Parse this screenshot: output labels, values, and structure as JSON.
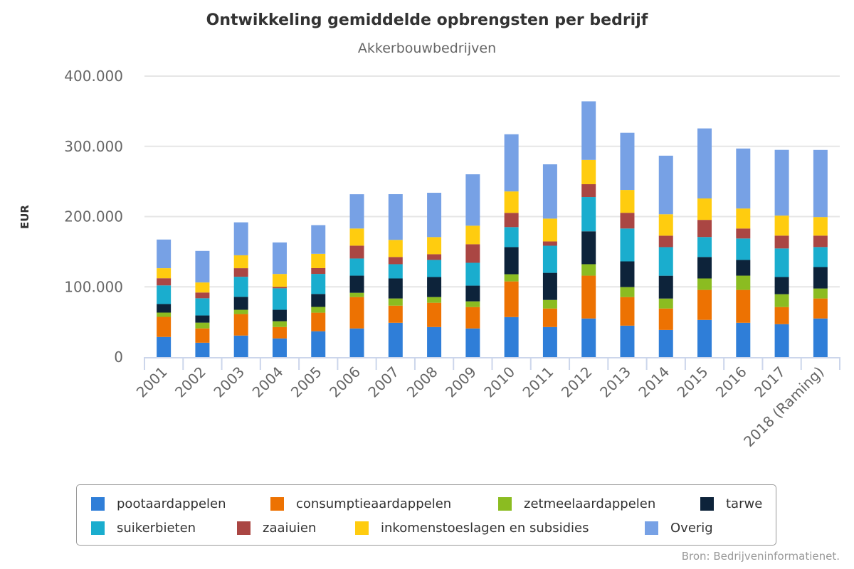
{
  "chart_data": {
    "type": "bar",
    "stacked": true,
    "title": "Ontwikkeling gemiddelde opbrengsten per bedrijf",
    "subtitle": "Akkerbouwbedrijven",
    "xlabel": "",
    "ylabel": "EUR",
    "ylim": [
      0,
      400000
    ],
    "yticks": [
      0,
      100000,
      200000,
      300000,
      400000
    ],
    "ytick_labels": [
      "0",
      "100.000",
      "200.000",
      "300.000",
      "400.000"
    ],
    "grid": true,
    "legend_position": "bottom",
    "categories": [
      "2001",
      "2002",
      "2003",
      "2004",
      "2005",
      "2006",
      "2007",
      "2008",
      "2009",
      "2010",
      "2011",
      "2012",
      "2013",
      "2014",
      "2015",
      "2016",
      "2017",
      "2018 (Raming)"
    ],
    "series": [
      {
        "name": "pootaardappelen",
        "color": "#2F7ED8",
        "values": [
          28600,
          20400,
          30600,
          26500,
          36700,
          40700,
          48800,
          42700,
          40700,
          56900,
          42700,
          54900,
          44700,
          38600,
          52900,
          48800,
          46800,
          54900
        ]
      },
      {
        "name": "consumptieaardappelen",
        "color": "#ED7202",
        "values": [
          28600,
          20400,
          30600,
          16300,
          26500,
          44700,
          24400,
          34600,
          30500,
          50800,
          26400,
          61000,
          40700,
          30500,
          42700,
          46800,
          24400,
          28500
        ]
      },
      {
        "name": "zetmeelaardappelen",
        "color": "#8BBC21",
        "values": [
          6100,
          8200,
          6100,
          8200,
          8200,
          6100,
          10200,
          8100,
          8100,
          10200,
          12200,
          16300,
          14200,
          14200,
          16300,
          20300,
          18300,
          14200
        ]
      },
      {
        "name": "tarwe",
        "color": "#0D233A",
        "values": [
          12200,
          10200,
          18400,
          16300,
          18400,
          24400,
          28500,
          28500,
          22400,
          38600,
          38600,
          46800,
          36600,
          32500,
          30500,
          22400,
          24400,
          30500
        ]
      },
      {
        "name": "suikerbieten",
        "color": "#1AADCE",
        "values": [
          26500,
          24500,
          28600,
          30600,
          28600,
          24400,
          20300,
          24400,
          32500,
          28500,
          38600,
          48800,
          46800,
          40700,
          28500,
          30500,
          40700,
          28500
        ]
      },
      {
        "name": "zaaiuien",
        "color": "#AA4643",
        "values": [
          10200,
          8200,
          12200,
          2000,
          8200,
          18300,
          10200,
          8100,
          26400,
          20300,
          6100,
          18300,
          22400,
          16300,
          24400,
          14200,
          18300,
          16300
        ]
      },
      {
        "name": "inkomenstoeslagen en subsidies",
        "color": "#FFCC0F",
        "values": [
          14300,
          14300,
          18400,
          18400,
          20400,
          24400,
          24400,
          24400,
          26400,
          30500,
          32500,
          34600,
          32500,
          30500,
          30500,
          28500,
          28500,
          26400
        ]
      },
      {
        "name": "Overig",
        "color": "#77A1E5",
        "values": [
          40800,
          44900,
          46900,
          44900,
          40800,
          48800,
          65100,
          63100,
          73200,
          81400,
          77300,
          83400,
          81400,
          83400,
          99700,
          85400,
          93600,
          95600
        ]
      }
    ]
  },
  "source": "Bron: Bedrijveninformatienet."
}
